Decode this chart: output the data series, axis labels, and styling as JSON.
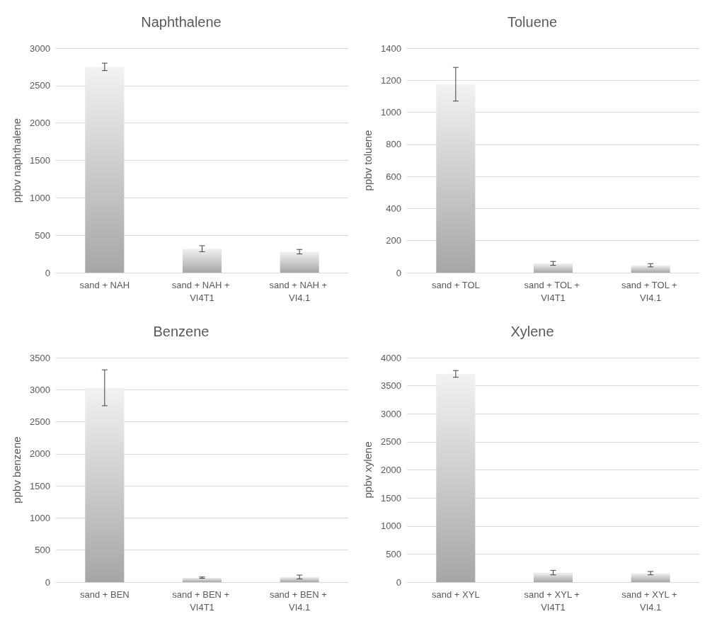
{
  "chart_data": [
    {
      "type": "bar",
      "title": "Naphthalene",
      "ylabel": "ppbv naphthalene",
      "categories": [
        "sand + NAH",
        "sand + NAH + VI4T1",
        "sand + NAH + VI4.1"
      ],
      "values": [
        2750,
        320,
        280
      ],
      "errors": [
        50,
        40,
        30
      ],
      "color": "#a6a6a6",
      "ylim": [
        0,
        3000
      ],
      "yticks": [
        0,
        500,
        1000,
        1500,
        2000,
        2500,
        3000
      ],
      "grid": "y"
    },
    {
      "type": "bar",
      "title": "Toluene",
      "ylabel": "ppbv toluene",
      "categories": [
        "sand + TOL",
        "sand + TOL + VI4T1",
        "sand + TOL + VI4.1"
      ],
      "values": [
        1175,
        58,
        46
      ],
      "errors": [
        105,
        12,
        10
      ],
      "color": "#a6a6a6",
      "ylim": [
        0,
        1400
      ],
      "yticks": [
        0,
        200,
        400,
        600,
        800,
        1000,
        1200,
        1400
      ],
      "grid": "y"
    },
    {
      "type": "bar",
      "title": "Benzene",
      "ylabel": "ppbv benzene",
      "categories": [
        "sand + BEN",
        "sand + BEN + VI4T1",
        "sand + BEN + VI4.1"
      ],
      "values": [
        3030,
        70,
        80
      ],
      "errors": [
        280,
        10,
        30
      ],
      "color": "#a6a6a6",
      "ylim": [
        0,
        3500
      ],
      "yticks": [
        0,
        500,
        1000,
        1500,
        2000,
        2500,
        3000,
        3500
      ],
      "grid": "y"
    },
    {
      "type": "bar",
      "title": "Xylene",
      "ylabel": "ppbv xylene",
      "categories": [
        "sand + XYL",
        "sand + XYL + VI4T1",
        "sand + XYL + VI4.1"
      ],
      "values": [
        3710,
        170,
        160
      ],
      "errors": [
        60,
        40,
        30
      ],
      "color": "#a6a6a6",
      "ylim": [
        0,
        4000
      ],
      "yticks": [
        0,
        500,
        1000,
        1500,
        2000,
        2500,
        3000,
        3500,
        4000
      ],
      "grid": "y"
    }
  ]
}
